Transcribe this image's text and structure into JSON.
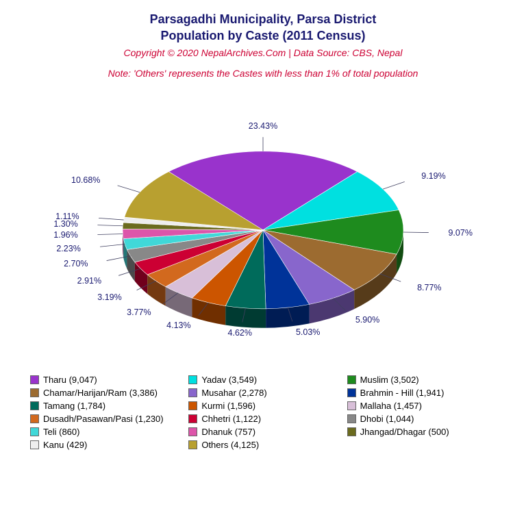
{
  "title": {
    "line1": "Parsagadhi Municipality, Parsa District",
    "line2": "Population by Caste (2011 Census)",
    "color": "#191970",
    "fontsize": 18
  },
  "copyright": {
    "text": "Copyright © 2020 NepalArchives.Com | Data Source: CBS, Nepal",
    "color": "#cc0033",
    "fontsize": 14
  },
  "note": {
    "text": "Note: 'Others' represents the Castes with less than 1% of total population",
    "color": "#cc0033",
    "fontsize": 14
  },
  "chart": {
    "type": "pie-3d",
    "background_color": "#ffffff",
    "label_color": "#191970",
    "label_fontsize": 12.5,
    "slices": [
      {
        "name": "Tharu",
        "count": "9,047",
        "pct": "23.43%",
        "color": "#9933cc"
      },
      {
        "name": "Yadav",
        "count": "3,549",
        "pct": "9.19%",
        "color": "#00e0e0"
      },
      {
        "name": "Muslim",
        "count": "3,502",
        "pct": "9.07%",
        "color": "#1e8b1e"
      },
      {
        "name": "Chamar/Harijan/Ram",
        "count": "3,386",
        "pct": "8.77%",
        "color": "#9c6b30"
      },
      {
        "name": "Musahar",
        "count": "2,278",
        "pct": "5.90%",
        "color": "#8866cc"
      },
      {
        "name": "Brahmin - Hill",
        "count": "1,941",
        "pct": "5.03%",
        "color": "#003399"
      },
      {
        "name": "Tamang",
        "count": "1,784",
        "pct": "4.62%",
        "color": "#006b5b"
      },
      {
        "name": "Kurmi",
        "count": "1,596",
        "pct": "4.13%",
        "color": "#cc5500"
      },
      {
        "name": "Mallaha",
        "count": "1,457",
        "pct": "3.77%",
        "color": "#d8bfd8"
      },
      {
        "name": "Dusadh/Pasawan/Pasi",
        "count": "1,230",
        "pct": "3.19%",
        "color": "#d2691e"
      },
      {
        "name": "Chhetri",
        "count": "1,122",
        "pct": "2.91%",
        "color": "#cc0033"
      },
      {
        "name": "Dhobi",
        "count": "1,044",
        "pct": "2.70%",
        "color": "#888888"
      },
      {
        "name": "Teli",
        "count": "860",
        "pct": "2.23%",
        "color": "#40d8d8"
      },
      {
        "name": "Dhanuk",
        "count": "757",
        "pct": "1.96%",
        "color": "#dd55aa"
      },
      {
        "name": "Jhangad/Dhagar",
        "count": "500",
        "pct": "1.30%",
        "color": "#6b6b1e"
      },
      {
        "name": "Kanu",
        "count": "429",
        "pct": "1.11%",
        "color": "#eeeeee"
      },
      {
        "name": "Others",
        "count": "4,125",
        "pct": "10.68%",
        "color": "#b8a030"
      }
    ]
  },
  "legend": {
    "fontsize": 13,
    "items": [
      {
        "label": "Tharu (9,047)",
        "color": "#9933cc"
      },
      {
        "label": "Yadav (3,549)",
        "color": "#00e0e0"
      },
      {
        "label": "Muslim (3,502)",
        "color": "#1e8b1e"
      },
      {
        "label": "Chamar/Harijan/Ram (3,386)",
        "color": "#9c6b30"
      },
      {
        "label": "Musahar (2,278)",
        "color": "#8866cc"
      },
      {
        "label": "Brahmin - Hill (1,941)",
        "color": "#003399"
      },
      {
        "label": "Tamang (1,784)",
        "color": "#006b5b"
      },
      {
        "label": "Kurmi (1,596)",
        "color": "#cc5500"
      },
      {
        "label": "Mallaha (1,457)",
        "color": "#d8bfd8"
      },
      {
        "label": "Dusadh/Pasawan/Pasi (1,230)",
        "color": "#d2691e"
      },
      {
        "label": "Chhetri (1,122)",
        "color": "#cc0033"
      },
      {
        "label": "Dhobi (1,044)",
        "color": "#888888"
      },
      {
        "label": "Teli (860)",
        "color": "#40d8d8"
      },
      {
        "label": "Dhanuk (757)",
        "color": "#dd55aa"
      },
      {
        "label": "Jhangad/Dhagar (500)",
        "color": "#6b6b1e"
      },
      {
        "label": "Kanu (429)",
        "color": "#eeeeee"
      },
      {
        "label": "Others (4,125)",
        "color": "#b8a030"
      }
    ]
  }
}
